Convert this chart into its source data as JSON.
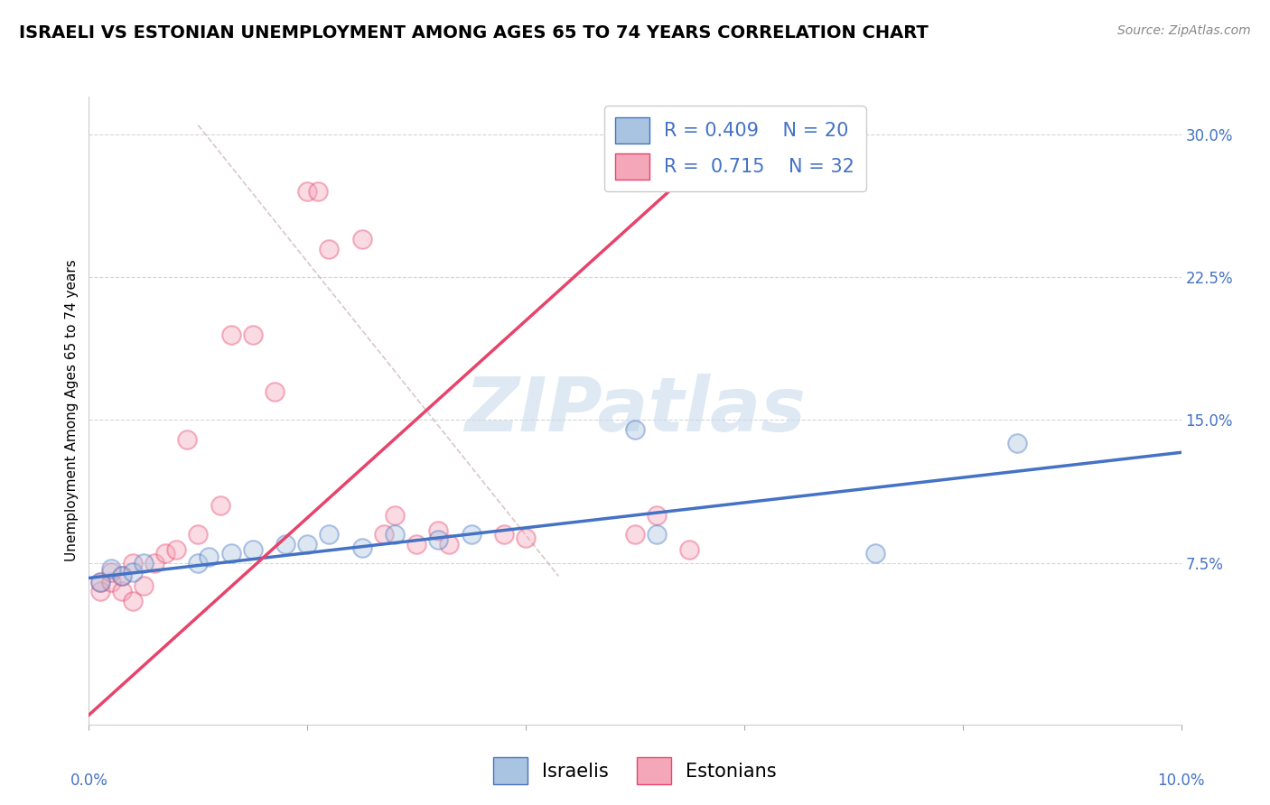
{
  "title": "ISRAELI VS ESTONIAN UNEMPLOYMENT AMONG AGES 65 TO 74 YEARS CORRELATION CHART",
  "source": "Source: ZipAtlas.com",
  "ylabel": "Unemployment Among Ages 65 to 74 years",
  "xlim": [
    0.0,
    0.1
  ],
  "ylim": [
    -0.01,
    0.32
  ],
  "yticks": [
    0.075,
    0.15,
    0.225,
    0.3
  ],
  "ytick_labels": [
    "7.5%",
    "15.0%",
    "22.5%",
    "30.0%"
  ],
  "legend_R_israeli": "0.409",
  "legend_N_israeli": "20",
  "legend_R_estonian": "0.715",
  "legend_N_estonian": "32",
  "israeli_color": "#a8c4e0",
  "estonian_color": "#f4a7b9",
  "israeli_line_color": "#4472c4",
  "estonian_line_color": "#e8436a",
  "diagonal_line_color": "#c8b0b0",
  "watermark": "ZIPatlas",
  "israeli_points_x": [
    0.001,
    0.002,
    0.003,
    0.004,
    0.005,
    0.01,
    0.011,
    0.013,
    0.015,
    0.018,
    0.02,
    0.022,
    0.025,
    0.028,
    0.032,
    0.035,
    0.05,
    0.052,
    0.072,
    0.085
  ],
  "israeli_points_y": [
    0.065,
    0.072,
    0.068,
    0.07,
    0.075,
    0.075,
    0.078,
    0.08,
    0.082,
    0.085,
    0.085,
    0.09,
    0.083,
    0.09,
    0.087,
    0.09,
    0.145,
    0.09,
    0.08,
    0.138
  ],
  "estonian_points_x": [
    0.001,
    0.001,
    0.002,
    0.002,
    0.003,
    0.003,
    0.004,
    0.004,
    0.005,
    0.006,
    0.007,
    0.008,
    0.009,
    0.01,
    0.012,
    0.013,
    0.015,
    0.017,
    0.02,
    0.021,
    0.022,
    0.025,
    0.027,
    0.028,
    0.03,
    0.032,
    0.033,
    0.038,
    0.04,
    0.05,
    0.052,
    0.055
  ],
  "estonian_points_y": [
    0.06,
    0.065,
    0.065,
    0.07,
    0.06,
    0.068,
    0.055,
    0.075,
    0.063,
    0.075,
    0.08,
    0.082,
    0.14,
    0.09,
    0.105,
    0.195,
    0.195,
    0.165,
    0.27,
    0.27,
    0.24,
    0.245,
    0.09,
    0.1,
    0.085,
    0.092,
    0.085,
    0.09,
    0.088,
    0.09,
    0.1,
    0.082
  ],
  "title_fontsize": 14,
  "source_fontsize": 10,
  "axis_label_fontsize": 11,
  "tick_fontsize": 12,
  "legend_fontsize": 15,
  "watermark_fontsize": 60,
  "scatter_size": 220,
  "scatter_alpha": 0.4,
  "scatter_linewidth": 1.5
}
